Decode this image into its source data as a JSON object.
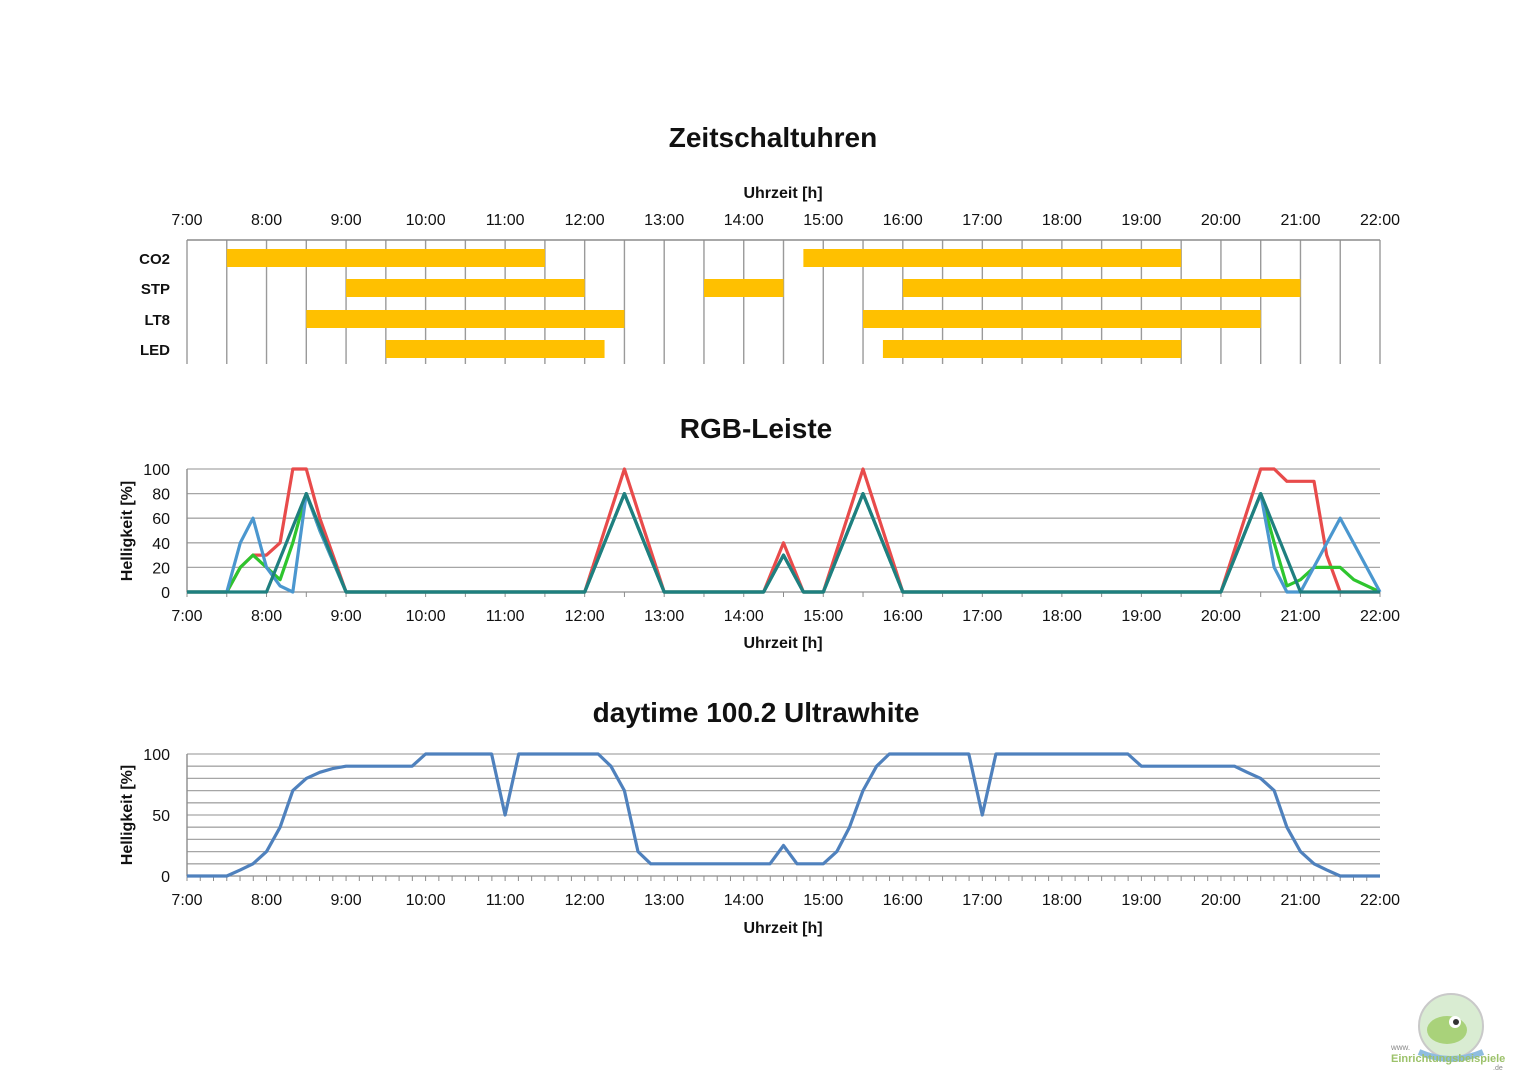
{
  "colors": {
    "bar": "#ffc000",
    "red": "#e84b4b",
    "green": "#2ec52e",
    "blue": "#4b97cf",
    "teal": "#1f7f7f",
    "ultrawhite": "#4f81bd"
  },
  "watermark": {
    "top": "www.",
    "name": "Einrichtungsbeispiele",
    "suffix": ".de",
    "icon": "fish-logo-icon"
  },
  "chart_data": [
    {
      "type": "bar",
      "orientation": "horizontal",
      "title": "Zeitschaltuhren",
      "xlabel": "Uhrzeit [h]",
      "xlim": [
        7,
        22
      ],
      "xticks": [
        7,
        8,
        9,
        10,
        11,
        12,
        13,
        14,
        15,
        16,
        17,
        18,
        19,
        20,
        21,
        22
      ],
      "xtick_labels": [
        "7:00",
        "8:00",
        "9:00",
        "10:00",
        "11:00",
        "12:00",
        "13:00",
        "14:00",
        "15:00",
        "16:00",
        "17:00",
        "18:00",
        "19:00",
        "20:00",
        "21:00",
        "22:00"
      ],
      "categories": [
        "CO2",
        "STP",
        "LT8",
        "LED"
      ],
      "intervals": [
        [
          [
            7.5,
            11.5
          ],
          [
            14.75,
            19.5
          ]
        ],
        [
          [
            9.0,
            12.0
          ],
          [
            13.5,
            14.5
          ],
          [
            16.0,
            21.0
          ]
        ],
        [
          [
            8.5,
            12.5
          ],
          [
            15.5,
            20.5
          ]
        ],
        [
          [
            9.5,
            12.25
          ],
          [
            15.75,
            19.5
          ]
        ]
      ]
    },
    {
      "type": "line",
      "title": "RGB-Leiste",
      "xlabel": "Uhrzeit [h]",
      "ylabel": "Helligkeit [%]",
      "xlim": [
        7,
        22
      ],
      "ylim": [
        0,
        100
      ],
      "yticks": [
        0,
        20,
        40,
        60,
        80,
        100
      ],
      "xtick_labels": [
        "7:00",
        "8:00",
        "9:00",
        "10:00",
        "11:00",
        "12:00",
        "13:00",
        "14:00",
        "15:00",
        "16:00",
        "17:00",
        "18:00",
        "19:00",
        "20:00",
        "21:00",
        "22:00"
      ],
      "series": [
        {
          "x": [
            7,
            7.5,
            7.67,
            7.83,
            8,
            8.17,
            8.33,
            8.5,
            8.67,
            9,
            12,
            12.25,
            12.5,
            12.75,
            13,
            14.25,
            14.5,
            14.75,
            15,
            15.25,
            15.5,
            15.75,
            16,
            20,
            20.25,
            20.5,
            20.67,
            20.83,
            21,
            21.17,
            21.33,
            21.5,
            22
          ],
          "y": [
            0,
            0,
            20,
            30,
            30,
            40,
            100,
            100,
            60,
            0,
            0,
            50,
            100,
            50,
            0,
            0,
            40,
            0,
            0,
            50,
            100,
            50,
            0,
            0,
            50,
            100,
            100,
            90,
            90,
            90,
            30,
            0,
            0
          ]
        },
        {
          "x": [
            7,
            7.5,
            7.67,
            7.83,
            8,
            8.17,
            8.33,
            8.5,
            8.67,
            9,
            12,
            12.25,
            12.5,
            12.75,
            13,
            14.25,
            14.5,
            14.75,
            15,
            15.25,
            15.5,
            15.75,
            16,
            20,
            20.25,
            20.5,
            20.67,
            20.83,
            21,
            21.17,
            21.33,
            21.5,
            21.67,
            22
          ],
          "y": [
            0,
            0,
            20,
            30,
            20,
            10,
            40,
            80,
            50,
            0,
            0,
            40,
            80,
            40,
            0,
            0,
            30,
            0,
            0,
            40,
            80,
            40,
            0,
            0,
            40,
            80,
            40,
            5,
            10,
            20,
            20,
            20,
            10,
            0
          ]
        },
        {
          "x": [
            7,
            7.5,
            7.67,
            7.83,
            8,
            8.17,
            8.33,
            8.5,
            8.67,
            9,
            12,
            12.25,
            12.5,
            12.75,
            13,
            14.25,
            14.5,
            14.75,
            15,
            15.25,
            15.5,
            15.75,
            16,
            20,
            20.25,
            20.5,
            20.67,
            20.83,
            21,
            21.5,
            22
          ],
          "y": [
            0,
            0,
            40,
            60,
            20,
            5,
            0,
            80,
            50,
            0,
            0,
            40,
            80,
            40,
            0,
            0,
            30,
            0,
            0,
            40,
            80,
            40,
            0,
            0,
            40,
            80,
            20,
            0,
            0,
            60,
            0
          ]
        },
        {
          "x": [
            7,
            7.5,
            8,
            8.5,
            9,
            12,
            12.5,
            13,
            14.25,
            14.5,
            14.75,
            15,
            15.5,
            16,
            20,
            20.5,
            21,
            22
          ],
          "y": [
            0,
            0,
            0,
            80,
            0,
            0,
            80,
            0,
            0,
            30,
            0,
            0,
            80,
            0,
            0,
            80,
            0,
            0
          ]
        }
      ]
    },
    {
      "type": "line",
      "title": "daytime 100.2 Ultrawhite",
      "xlabel": "Uhrzeit [h]",
      "ylabel": "Helligkeit [%]",
      "xlim": [
        7,
        22
      ],
      "ylim": [
        0,
        100
      ],
      "yticks": [
        0,
        50,
        100
      ],
      "ygrid_step": 10,
      "xtick_labels": [
        "7:00",
        "8:00",
        "9:00",
        "10:00",
        "11:00",
        "12:00",
        "13:00",
        "14:00",
        "15:00",
        "16:00",
        "17:00",
        "18:00",
        "19:00",
        "20:00",
        "21:00",
        "22:00"
      ],
      "series": [
        {
          "x": [
            7,
            7.5,
            7.67,
            7.83,
            8,
            8.17,
            8.33,
            8.5,
            8.67,
            8.83,
            9,
            9.83,
            10,
            10.83,
            11,
            11.17,
            12.17,
            12.33,
            12.5,
            12.67,
            12.83,
            14.33,
            14.5,
            14.67,
            15,
            15.17,
            15.33,
            15.5,
            15.67,
            15.83,
            16.83,
            17,
            17.17,
            18.83,
            19,
            20.17,
            20.33,
            20.5,
            20.67,
            20.83,
            21,
            21.17,
            21.33,
            21.5,
            22
          ],
          "y": [
            0,
            0,
            5,
            10,
            20,
            40,
            70,
            80,
            85,
            88,
            90,
            90,
            100,
            100,
            50,
            100,
            100,
            90,
            70,
            20,
            10,
            10,
            25,
            10,
            10,
            20,
            40,
            70,
            90,
            100,
            100,
            50,
            100,
            100,
            90,
            90,
            85,
            80,
            70,
            40,
            20,
            10,
            5,
            0,
            0
          ]
        }
      ]
    }
  ]
}
